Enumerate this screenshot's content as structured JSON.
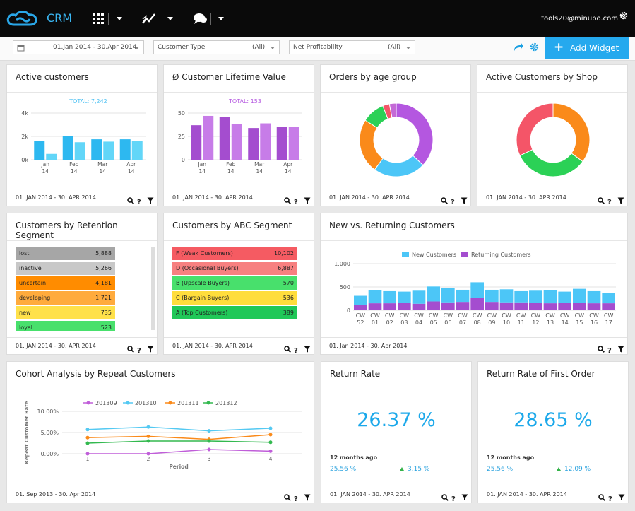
{
  "app": {
    "title": "CRM",
    "user": "tools20@minubo.com"
  },
  "nav": {
    "icons": [
      "apps-grid-icon",
      "trend-chart-icon",
      "chat-bubbles-icon"
    ]
  },
  "filters": {
    "date_range": "01.Jan 2014 - 30.Apr 2014",
    "customer_type": {
      "label": "Customer Type",
      "value": "(All)"
    },
    "net_profitability": {
      "label": "Net Profitability",
      "value": "(All)"
    },
    "add_widget": "Add Widget"
  },
  "widgets": {
    "active_customers": {
      "title": "Active customers",
      "footer": "01. JAN 2014 - 30. APR 2014"
    },
    "clv": {
      "title": "Ø Customer Lifetime Value",
      "footer": "01. JAN 2014 - 30. APR 2014"
    },
    "orders_age": {
      "title": "Orders by age group",
      "footer": "01. JAN 2014 - 30. APR 2014"
    },
    "customers_shop": {
      "title": "Active Customers by Shop",
      "footer": "01. JAN 2014 - 30. APR 2014"
    },
    "retention": {
      "title": "Customers by Retention Segment",
      "footer": "01. JAN 2014 - 30. APR 2014",
      "rows": [
        {
          "name": "lost",
          "value": "5,888",
          "color": "#a6a6a6"
        },
        {
          "name": "inactive",
          "value": "5,266",
          "color": "#c8c8c8"
        },
        {
          "name": "uncertain",
          "value": "4,181",
          "color": "#ff8c00"
        },
        {
          "name": "developing",
          "value": "1,721",
          "color": "#ffab3d"
        },
        {
          "name": "new",
          "value": "735",
          "color": "#ffe14a"
        },
        {
          "name": "loyal",
          "value": "523",
          "color": "#48e06c"
        }
      ]
    },
    "abc": {
      "title": "Customers by ABC Segment",
      "footer": "01. JAN 2014 - 30. APR 2014",
      "rows": [
        {
          "name": "F (Weak Customers)",
          "value": "10,102",
          "color": "#f55b62"
        },
        {
          "name": "D (Occasional Buyers)",
          "value": "6,887",
          "color": "#f78080"
        },
        {
          "name": "B (Upscale Buyers)",
          "value": "570",
          "color": "#48e06c"
        },
        {
          "name": "C (Bargain Buyers)",
          "value": "536",
          "color": "#ffdd3c"
        },
        {
          "name": "A (Top Customers)",
          "value": "389",
          "color": "#20c858"
        }
      ]
    },
    "new_returning": {
      "title": "New vs. Returning Customers",
      "footer": "01. Jan 2014 - 30. Apr 2014"
    },
    "cohort": {
      "title": "Cohort Analysis by Repeat Customers",
      "footer": "01. Sep 2013 - 30. Apr 2014"
    },
    "return_rate": {
      "title": "Return Rate",
      "value": "26.37 %",
      "sub_label": "12 months ago",
      "prev": "25.56 %",
      "change": "3.15 %",
      "footer": "01. JAN 2014 - 30. APR 2014"
    },
    "return_rate_first": {
      "title": "Return Rate of First Order",
      "value": "28.65 %",
      "sub_label": "12 months ago",
      "prev": "25.56 %",
      "change": "12.09 %",
      "footer": "01. JAN 2014 - 30. APR 2014"
    }
  },
  "chart_data": [
    {
      "id": "active_customers",
      "type": "bar",
      "title": "TOTAL: 7,242",
      "categories": [
        "Jan 14",
        "Feb 14",
        "Mar 14",
        "Apr 14"
      ],
      "yticks": [
        "0k",
        "2k",
        "4k"
      ],
      "ylim": [
        0,
        4000
      ],
      "series": [
        {
          "values": [
            1600,
            2000,
            1750,
            1750
          ],
          "color": "#2db8f0"
        },
        {
          "values": [
            500,
            1500,
            1550,
            1600
          ],
          "color": "#62d6f8"
        }
      ]
    },
    {
      "id": "clv",
      "type": "bar",
      "title": "TOTAL: 153",
      "categories": [
        "Jan 14",
        "Feb 14",
        "Mar 14",
        "Apr 14"
      ],
      "yticks": [
        "0",
        "25",
        "50"
      ],
      "ylim": [
        0,
        50
      ],
      "series": [
        {
          "values": [
            37,
            46,
            34,
            35
          ],
          "color": "#a44dcf"
        },
        {
          "values": [
            47,
            38,
            39,
            35
          ],
          "color": "#c77ce8"
        }
      ]
    },
    {
      "id": "orders_age",
      "type": "pie",
      "slices": [
        {
          "value": 37,
          "color": "#b457e0"
        },
        {
          "value": 23,
          "color": "#4cc6f7"
        },
        {
          "value": 24,
          "color": "#fa8a1a"
        },
        {
          "value": 10,
          "color": "#2bd156"
        },
        {
          "value": 3,
          "color": "#f45568"
        },
        {
          "value": 3,
          "color": "#c46ad6"
        }
      ]
    },
    {
      "id": "customers_shop",
      "type": "pie",
      "slices": [
        {
          "value": 35,
          "color": "#fa8a1a"
        },
        {
          "value": 33,
          "color": "#2bd156"
        },
        {
          "value": 32,
          "color": "#f45568"
        }
      ]
    },
    {
      "id": "new_returning",
      "type": "bar",
      "legend": [
        "New Customers",
        "Returning Customers"
      ],
      "categories": [
        "CW 52",
        "CW 01",
        "CW 02",
        "CW 03",
        "CW 04",
        "CW 05",
        "CW 06",
        "CW 07",
        "CW 08",
        "CW 09",
        "CW 10",
        "CW 11",
        "CW 12",
        "CW 13",
        "CW 14",
        "CW 15",
        "CW 16",
        "CW 17"
      ],
      "yticks": [
        "0",
        "500",
        "1,000"
      ],
      "ylim": [
        0,
        1000
      ],
      "series": [
        {
          "name": "New Customers",
          "values": [
            200,
            280,
            260,
            240,
            280,
            320,
            300,
            260,
            330,
            260,
            280,
            240,
            260,
            280,
            240,
            300,
            260,
            220
          ],
          "color": "#4cc6f7"
        },
        {
          "name": "Returning Customers",
          "values": [
            110,
            150,
            150,
            160,
            140,
            190,
            170,
            180,
            270,
            180,
            170,
            170,
            160,
            150,
            160,
            160,
            150,
            150
          ],
          "color": "#a44dcf"
        }
      ]
    },
    {
      "id": "cohort",
      "type": "line",
      "ylabel": "Repeat Customer Rate",
      "xlabel": "Period",
      "x": [
        1,
        2,
        3,
        4
      ],
      "yticks": [
        "0.00%",
        "5.00%",
        "10.00%"
      ],
      "ylim": [
        0,
        10
      ],
      "series": [
        {
          "name": "201309",
          "values": [
            0.0,
            0.0,
            1.0,
            0.6
          ],
          "color": "#c05ed9"
        },
        {
          "name": "201310",
          "values": [
            5.7,
            6.3,
            5.4,
            6.0
          ],
          "color": "#54c9f2"
        },
        {
          "name": "201311",
          "values": [
            3.8,
            4.1,
            3.4,
            4.5
          ],
          "color": "#fa8a1a"
        },
        {
          "name": "201312",
          "values": [
            2.5,
            3.0,
            3.0,
            2.7
          ],
          "color": "#33b94f"
        }
      ]
    }
  ]
}
